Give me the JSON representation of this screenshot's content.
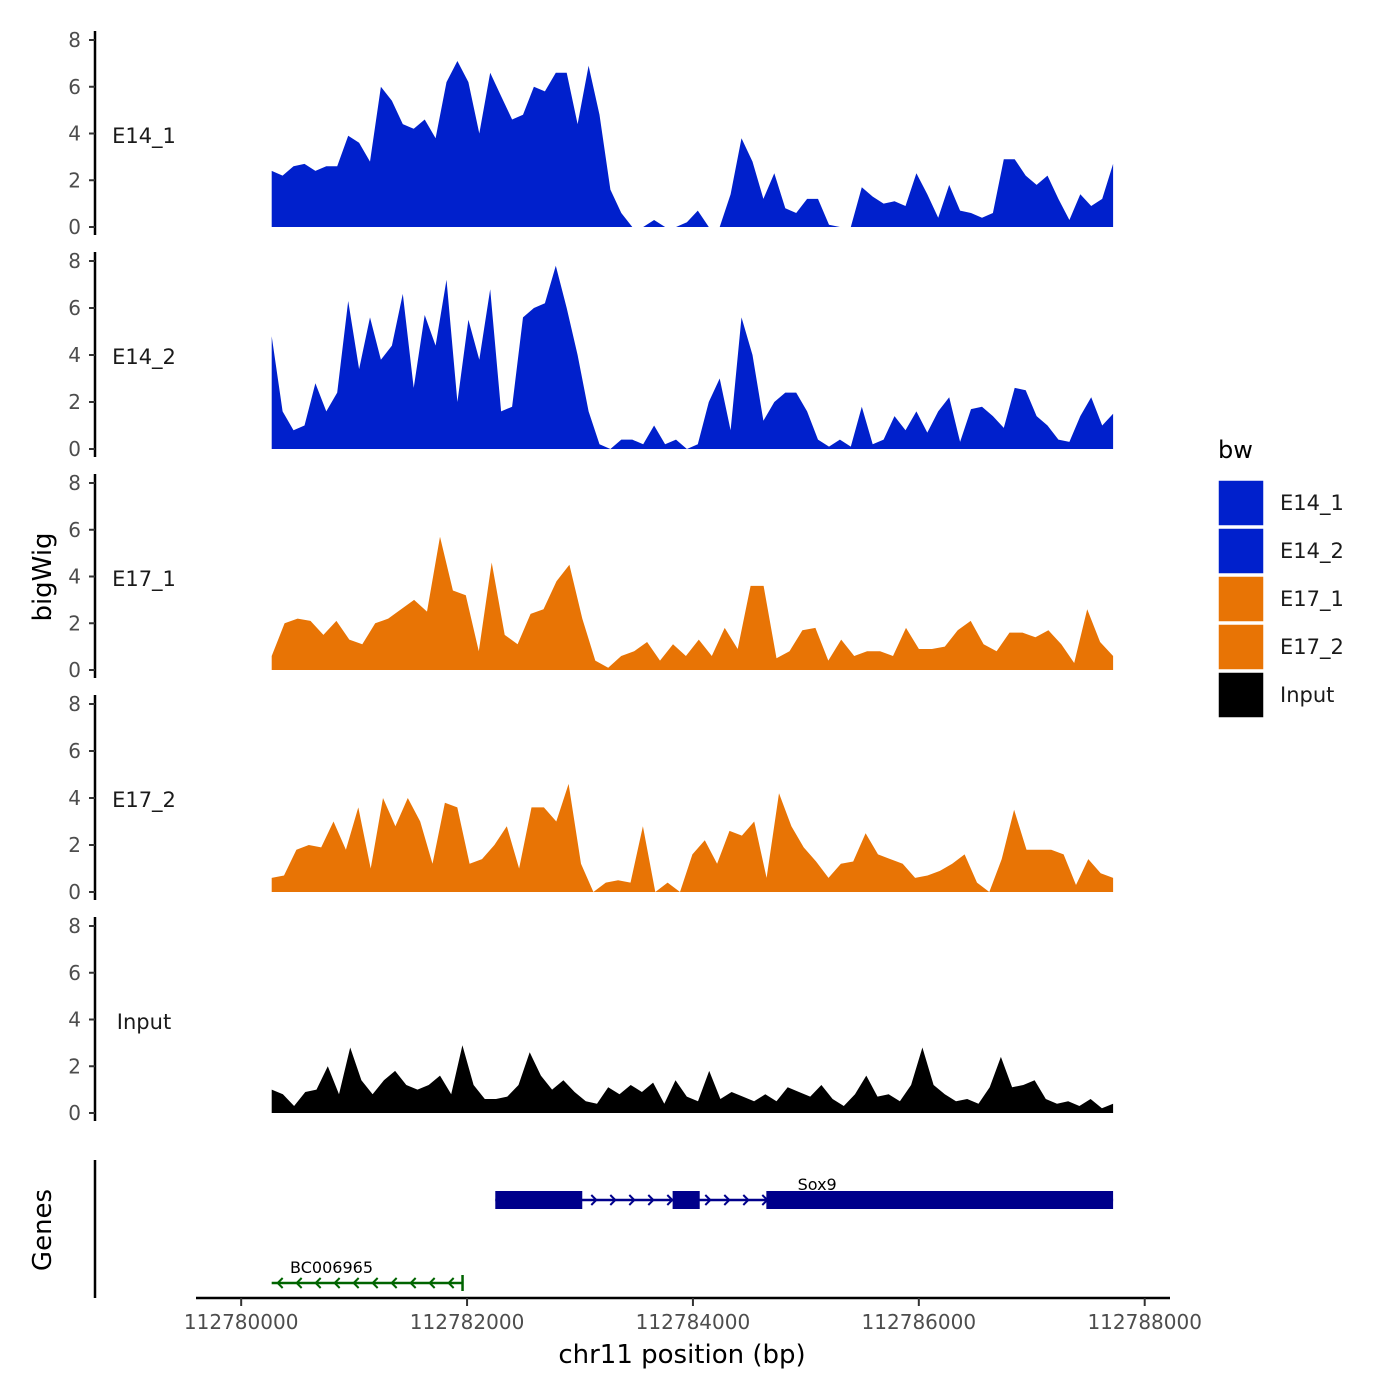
{
  "chart_data": {
    "type": "area",
    "title": "",
    "xlabel": "chr11 position (bp)",
    "ylabel": "bigWig",
    "genes_label": "Genes",
    "xlim": [
      112779600,
      112788100
    ],
    "data_xrange": [
      112780270,
      112787720
    ],
    "x_ticks": [
      112780000,
      112782000,
      112784000,
      112786000,
      112788000
    ],
    "x_tick_labels": [
      "112780000",
      "112782000",
      "112784000",
      "112786000",
      "112788000"
    ],
    "ylim": [
      0,
      8
    ],
    "y_ticks": [
      0,
      2,
      4,
      6,
      8
    ],
    "y_tick_labels": [
      "0",
      "2",
      "4",
      "6",
      "8"
    ],
    "legend": {
      "title": "bw",
      "position": "right",
      "items": [
        {
          "label": "E14_1",
          "color": "#0020CC"
        },
        {
          "label": "E14_2",
          "color": "#0020CC"
        },
        {
          "label": "E17_1",
          "color": "#E87405"
        },
        {
          "label": "E17_2",
          "color": "#E87405"
        },
        {
          "label": "Input",
          "color": "#000000"
        }
      ]
    },
    "series": [
      {
        "name": "E14_1",
        "color": "#0020CC",
        "values": [
          2.4,
          2.2,
          2.6,
          2.7,
          2.4,
          2.6,
          2.6,
          3.9,
          3.6,
          2.8,
          6.0,
          5.4,
          4.4,
          4.2,
          4.6,
          3.8,
          6.2,
          7.1,
          6.2,
          4.0,
          6.6,
          5.6,
          4.6,
          4.8,
          6.0,
          5.8,
          6.6,
          6.6,
          4.4,
          6.9,
          4.8,
          1.6,
          0.6,
          0.0,
          0.0,
          0.3,
          0.0,
          0.0,
          0.2,
          0.7,
          0.0,
          0.0,
          1.4,
          3.8,
          2.8,
          1.2,
          2.3,
          0.8,
          0.6,
          1.2,
          1.2,
          0.1,
          0.0,
          0.0,
          1.7,
          1.3,
          1.0,
          1.1,
          0.9,
          2.3,
          1.4,
          0.4,
          1.8,
          0.7,
          0.6,
          0.4,
          0.6,
          2.9,
          2.9,
          2.2,
          1.8,
          2.2,
          1.2,
          0.3,
          1.4,
          0.9,
          1.2,
          2.7
        ]
      },
      {
        "name": "E14_2",
        "color": "#0020CC",
        "values": [
          4.8,
          1.6,
          0.8,
          1.0,
          2.8,
          1.6,
          2.4,
          6.3,
          3.4,
          5.6,
          3.8,
          4.4,
          6.6,
          2.6,
          5.7,
          4.4,
          7.2,
          2.0,
          5.5,
          3.8,
          6.8,
          1.6,
          1.8,
          5.6,
          6.0,
          6.2,
          7.8,
          6.0,
          4.0,
          1.6,
          0.2,
          0.0,
          0.4,
          0.4,
          0.2,
          1.0,
          0.2,
          0.4,
          0.0,
          0.2,
          2.0,
          3.0,
          0.8,
          5.6,
          4.0,
          1.2,
          2.0,
          2.4,
          2.4,
          1.6,
          0.4,
          0.1,
          0.4,
          0.1,
          1.8,
          0.2,
          0.4,
          1.4,
          0.8,
          1.6,
          0.7,
          1.6,
          2.2,
          0.3,
          1.7,
          1.8,
          1.4,
          0.9,
          2.6,
          2.5,
          1.4,
          1.0,
          0.4,
          0.3,
          1.4,
          2.2,
          1.0,
          1.5
        ]
      },
      {
        "name": "E17_1",
        "color": "#E87405",
        "values": [
          0.6,
          2.0,
          2.2,
          2.1,
          1.5,
          2.1,
          1.3,
          1.1,
          2.0,
          2.2,
          2.6,
          3.0,
          2.5,
          5.7,
          3.4,
          3.2,
          0.8,
          4.6,
          1.5,
          1.1,
          2.4,
          2.6,
          3.8,
          4.5,
          2.2,
          0.4,
          0.1,
          0.6,
          0.8,
          1.2,
          0.4,
          1.1,
          0.6,
          1.3,
          0.6,
          1.8,
          0.9,
          3.6,
          3.6,
          0.5,
          0.8,
          1.7,
          1.8,
          0.4,
          1.3,
          0.6,
          0.8,
          0.8,
          0.6,
          1.8,
          0.9,
          0.9,
          1.0,
          1.7,
          2.1,
          1.1,
          0.8,
          1.6,
          1.6,
          1.4,
          1.7,
          1.1,
          0.3,
          2.6,
          1.2,
          0.6
        ]
      },
      {
        "name": "E17_2",
        "color": "#E87405",
        "values": [
          0.6,
          0.7,
          1.8,
          2.0,
          1.9,
          3.0,
          1.8,
          3.6,
          1.0,
          4.0,
          2.8,
          4.0,
          3.0,
          1.2,
          3.8,
          3.6,
          1.2,
          1.4,
          2.0,
          2.8,
          1.0,
          3.6,
          3.6,
          3.0,
          4.6,
          1.2,
          0.0,
          0.4,
          0.5,
          0.4,
          2.8,
          0.0,
          0.4,
          0.0,
          1.6,
          2.2,
          1.2,
          2.6,
          2.4,
          3.0,
          0.6,
          4.2,
          2.8,
          1.9,
          1.3,
          0.6,
          1.2,
          1.3,
          2.5,
          1.6,
          1.4,
          1.2,
          0.6,
          0.7,
          0.9,
          1.2,
          1.6,
          0.4,
          0.0,
          1.4,
          3.5,
          1.8,
          1.8,
          1.8,
          1.6,
          0.3,
          1.4,
          0.8,
          0.6
        ]
      },
      {
        "name": "Input",
        "color": "#000000",
        "values": [
          1.0,
          0.8,
          0.3,
          0.9,
          1.0,
          2.0,
          0.8,
          2.8,
          1.4,
          0.8,
          1.4,
          1.8,
          1.2,
          1.0,
          1.2,
          1.6,
          0.8,
          2.9,
          1.2,
          0.6,
          0.6,
          0.7,
          1.2,
          2.6,
          1.6,
          1.0,
          1.4,
          0.9,
          0.5,
          0.4,
          1.1,
          0.8,
          1.2,
          0.9,
          1.3,
          0.4,
          1.4,
          0.7,
          0.5,
          1.8,
          0.6,
          0.9,
          0.7,
          0.5,
          0.8,
          0.5,
          1.1,
          0.9,
          0.7,
          1.2,
          0.6,
          0.3,
          0.8,
          1.6,
          0.7,
          0.8,
          0.5,
          1.2,
          2.8,
          1.2,
          0.8,
          0.5,
          0.6,
          0.4,
          1.1,
          2.4,
          1.1,
          1.2,
          1.4,
          0.6,
          0.4,
          0.5,
          0.3,
          0.6,
          0.2,
          0.4
        ]
      }
    ],
    "genes": [
      {
        "name": "Sox9",
        "strand": "+",
        "color": "#00008B",
        "start": 112782250,
        "end": 112787720,
        "exons": [
          [
            112782250,
            112783020
          ],
          [
            112783820,
            112784060
          ],
          [
            112784650,
            112787720
          ]
        ]
      },
      {
        "name": "BC006965",
        "strand": "-",
        "color": "#006400",
        "start": 112780270,
        "end": 112781960,
        "exons": []
      }
    ]
  }
}
